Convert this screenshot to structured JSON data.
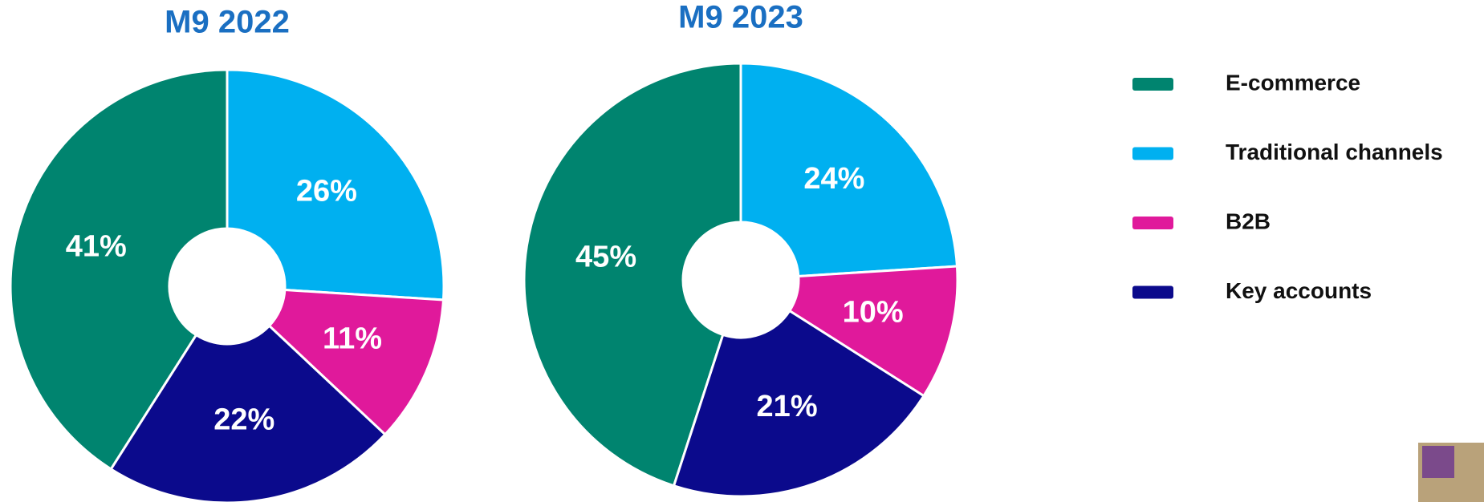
{
  "chart_data": [
    {
      "type": "pie",
      "title": "M9 2022",
      "categories": [
        "E-commerce",
        "Traditional channels",
        "B2B",
        "Key accounts"
      ],
      "values": [
        41,
        26,
        11,
        22
      ],
      "value_labels": [
        "41%",
        "26%",
        "11%",
        "22%"
      ],
      "colors": [
        "#00846f",
        "#00b0f0",
        "#e0199b",
        "#0b0a8c"
      ]
    },
    {
      "type": "pie",
      "title": "M9 2023",
      "values": [
        45,
        24,
        10,
        21
      ],
      "value_labels": [
        "45%",
        "24%",
        "10%",
        "21%"
      ],
      "colors": [
        "#00846f",
        "#00b0f0",
        "#e0199b",
        "#0b0a8c"
      ]
    }
  ]
}
